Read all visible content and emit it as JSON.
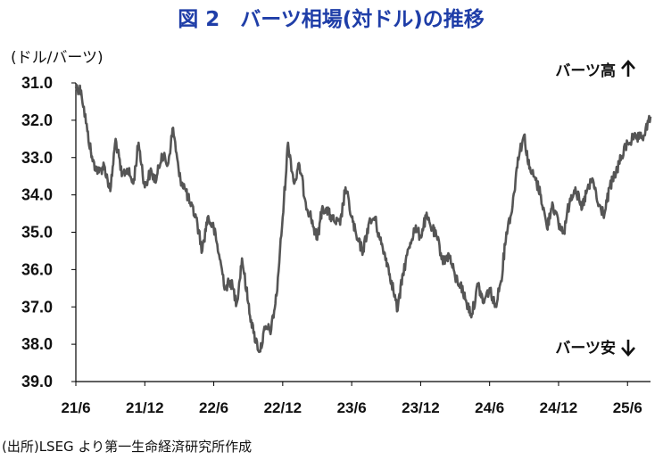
{
  "chart_data": {
    "type": "line",
    "title": "図 2　バーツ相場(対ドル)の推移",
    "ylabel": "(ドル/バーツ)",
    "xlabel": "",
    "source": "(出所)LSEG より第一生命経済研究所作成",
    "y_inverted": true,
    "ylim": [
      31.0,
      39.0
    ],
    "yticks": [
      "31.0",
      "32.0",
      "33.0",
      "34.0",
      "35.0",
      "36.0",
      "37.0",
      "38.0",
      "39.0"
    ],
    "xticks": [
      "21/6",
      "21/12",
      "22/6",
      "22/12",
      "23/6",
      "23/12",
      "24/6",
      "24/12",
      "25/6"
    ],
    "xlim": [
      "2021-06",
      "2025-08"
    ],
    "grid": false,
    "legend": "none",
    "annotations": [
      {
        "text": "バーツ高",
        "arrow": "up",
        "position": "top-right"
      },
      {
        "text": "バーツ安",
        "arrow": "down",
        "position": "bottom-right"
      }
    ],
    "line_color": "#555555",
    "title_color": "#1f3ea8",
    "series": [
      {
        "x": [
          "2021-06-01",
          "2021-06-15",
          "2021-07-01",
          "2021-07-15",
          "2021-08-01",
          "2021-08-15",
          "2021-09-01",
          "2021-09-15",
          "2021-10-01",
          "2021-10-15",
          "2021-11-01",
          "2021-11-15",
          "2021-12-01",
          "2021-12-15",
          "2022-01-01",
          "2022-01-15",
          "2022-02-01",
          "2022-02-15",
          "2022-03-01",
          "2022-03-15",
          "2022-04-01",
          "2022-04-15",
          "2022-05-01",
          "2022-05-15",
          "2022-06-01",
          "2022-06-15",
          "2022-07-01",
          "2022-07-15",
          "2022-08-01",
          "2022-08-15",
          "2022-09-01",
          "2022-09-15",
          "2022-10-01",
          "2022-10-15",
          "2022-11-01",
          "2022-11-15",
          "2022-12-01",
          "2022-12-15",
          "2023-01-01",
          "2023-01-15",
          "2023-02-01",
          "2023-02-15",
          "2023-03-01",
          "2023-03-15",
          "2023-04-01",
          "2023-04-15",
          "2023-05-01",
          "2023-05-15",
          "2023-06-01",
          "2023-06-15",
          "2023-07-01",
          "2023-07-15",
          "2023-08-01",
          "2023-08-15",
          "2023-09-01",
          "2023-09-15",
          "2023-10-01",
          "2023-10-15",
          "2023-11-01",
          "2023-11-15",
          "2023-12-01",
          "2023-12-15",
          "2024-01-01",
          "2024-01-15",
          "2024-02-01",
          "2024-02-15",
          "2024-03-01",
          "2024-03-15",
          "2024-04-01",
          "2024-04-15",
          "2024-05-01",
          "2024-05-15",
          "2024-06-01",
          "2024-06-15",
          "2024-07-01",
          "2024-07-15",
          "2024-08-01",
          "2024-08-15",
          "2024-09-01",
          "2024-09-15",
          "2024-10-01",
          "2024-10-15",
          "2024-11-01",
          "2024-11-15",
          "2024-12-01",
          "2024-12-15",
          "2025-01-01",
          "2025-01-15",
          "2025-02-01",
          "2025-02-15",
          "2025-03-01",
          "2025-03-15",
          "2025-04-01",
          "2025-04-15",
          "2025-05-01",
          "2025-05-15",
          "2025-06-01",
          "2025-06-15",
          "2025-07-01",
          "2025-07-15",
          "2025-08-01"
        ],
        "values": [
          31.1,
          31.2,
          32.3,
          33.1,
          33.4,
          33.2,
          33.9,
          32.5,
          33.5,
          33.3,
          33.7,
          32.6,
          33.8,
          33.4,
          33.6,
          32.9,
          33.2,
          32.2,
          33.5,
          33.8,
          34.3,
          34.6,
          35.5,
          34.6,
          34.9,
          35.6,
          36.5,
          36.3,
          36.9,
          35.7,
          36.9,
          37.7,
          38.2,
          37.6,
          37.6,
          36.7,
          34.6,
          32.6,
          33.7,
          33.2,
          34.2,
          34.6,
          35.2,
          34.3,
          34.5,
          34.7,
          34.8,
          33.8,
          34.6,
          35.2,
          35.5,
          34.8,
          34.6,
          35.2,
          35.7,
          36.3,
          37.1,
          36.1,
          35.4,
          34.9,
          35.1,
          34.6,
          34.9,
          35.2,
          35.8,
          35.6,
          36.2,
          36.4,
          36.9,
          37.2,
          36.4,
          36.9,
          36.5,
          37.0,
          36.3,
          35.0,
          34.3,
          33.0,
          32.4,
          33.3,
          33.6,
          34.0,
          34.9,
          34.2,
          34.8,
          35.0,
          34.1,
          33.8,
          34.4,
          33.9,
          33.6,
          34.3,
          34.5,
          33.8,
          33.4,
          33.0,
          32.6,
          32.5,
          32.5,
          32.4,
          31.9
        ]
      }
    ]
  }
}
